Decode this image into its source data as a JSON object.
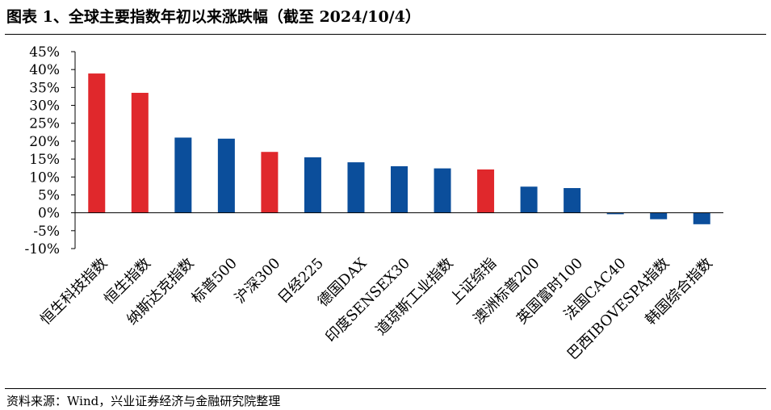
{
  "header": {
    "title": "图表 1、全球主要指数年初以来涨跌幅（截至 2024/10/4）"
  },
  "footer": {
    "source": "资料来源：Wind，兴业证券经济与金融研究院整理"
  },
  "colors": {
    "blue": "#0b4e9b",
    "red": "#e0282c",
    "axis": "#000000"
  },
  "chart_data": {
    "type": "bar",
    "title": "",
    "xlabel": "",
    "ylabel": "",
    "ylim": [
      -10,
      45
    ],
    "ytick_step": 5,
    "tick_suffix": "%",
    "grid": false,
    "legend": "none",
    "categories": [
      "恒生科技指数",
      "恒生指数",
      "纳斯达克指数",
      "标普500",
      "沪深300",
      "日经225",
      "德国DAX",
      "印度SENSEX30",
      "道琼斯工业指数",
      "上证综指",
      "澳洲标普200",
      "英国富时100",
      "法国CAC40",
      "巴西IBOVESPA指数",
      "韩国综合指数"
    ],
    "values": [
      38.9,
      33.5,
      21.0,
      20.7,
      17.0,
      15.5,
      14.1,
      13.0,
      12.4,
      12.1,
      7.3,
      6.9,
      -0.4,
      -1.8,
      -3.2
    ],
    "bar_colors": [
      "red",
      "red",
      "blue",
      "blue",
      "red",
      "blue",
      "blue",
      "blue",
      "blue",
      "red",
      "blue",
      "blue",
      "blue",
      "blue",
      "blue"
    ]
  }
}
